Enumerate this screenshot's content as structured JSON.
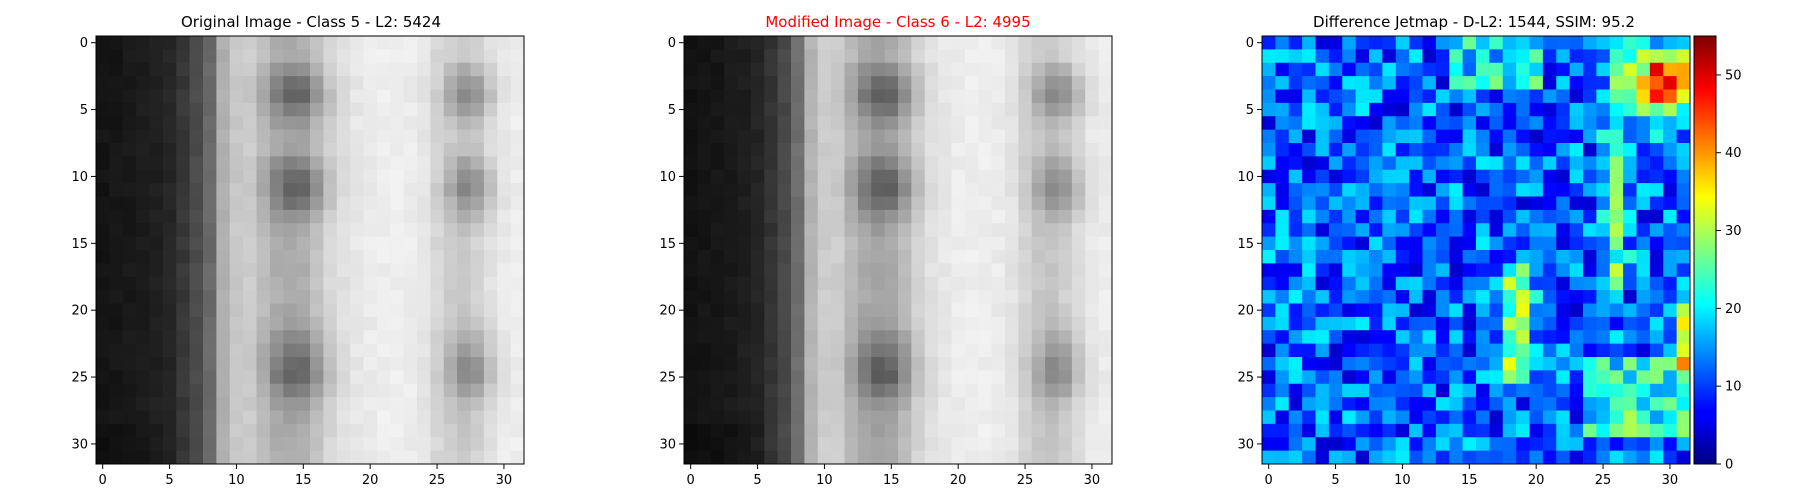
{
  "chart_data": [
    {
      "type": "heatmap",
      "title": "Original Image - Class 5 - L2: 5424",
      "title_color": "#000000",
      "colormap": "gray",
      "xlim": [
        -0.5,
        31.5
      ],
      "ylim": [
        31.5,
        -0.5
      ],
      "xticks": [
        0,
        5,
        10,
        15,
        20,
        25,
        30
      ],
      "yticks": [
        0,
        5,
        10,
        15,
        20,
        25,
        30
      ],
      "column_profile": [
        20,
        22,
        25,
        28,
        32,
        38,
        55,
        75,
        105,
        175,
        200,
        205,
        190,
        175,
        170,
        175,
        195,
        215,
        225,
        232,
        235,
        238,
        238,
        236,
        230,
        215,
        205,
        200,
        210,
        225,
        235,
        238
      ],
      "row_profile": [
        0,
        0,
        0.35,
        0.65,
        0.8,
        0.55,
        0.25,
        0.1,
        0.15,
        0.45,
        0.7,
        0.8,
        0.6,
        0.3,
        0.1,
        0.0,
        0.0,
        0.0,
        0.0,
        0.0,
        0.05,
        0.15,
        0.35,
        0.55,
        0.75,
        0.8,
        0.55,
        0.25,
        0.1,
        0.05,
        0,
        0
      ]
    },
    {
      "type": "heatmap",
      "title": "Modified Image - Class 6 - L2: 4995",
      "title_color": "#ff0000",
      "colormap": "gray",
      "xlim": [
        -0.5,
        31.5
      ],
      "ylim": [
        31.5,
        -0.5
      ],
      "xticks": [
        0,
        5,
        10,
        15,
        20,
        25,
        30
      ],
      "yticks": [
        0,
        5,
        10,
        15,
        20,
        25,
        30
      ],
      "column_profile": [
        18,
        20,
        22,
        25,
        30,
        36,
        52,
        72,
        110,
        180,
        205,
        205,
        185,
        170,
        165,
        170,
        190,
        212,
        225,
        232,
        236,
        238,
        238,
        235,
        228,
        212,
        200,
        198,
        208,
        222,
        232,
        236
      ],
      "row_profile": [
        0,
        0,
        0.35,
        0.65,
        0.8,
        0.55,
        0.25,
        0.1,
        0.15,
        0.45,
        0.7,
        0.8,
        0.6,
        0.3,
        0.1,
        0.0,
        0.0,
        0.0,
        0.0,
        0.0,
        0.05,
        0.15,
        0.35,
        0.55,
        0.75,
        0.8,
        0.55,
        0.25,
        0.1,
        0.05,
        0,
        0
      ]
    },
    {
      "type": "heatmap",
      "title": "Difference Jetmap - D-L2: 1544, SSIM: 95.2",
      "title_color": "#000000",
      "colormap": "jet",
      "vmin": 0,
      "vmax": 55,
      "xlim": [
        -0.5,
        31.5
      ],
      "ylim": [
        31.5,
        -0.5
      ],
      "xticks": [
        0,
        5,
        10,
        15,
        20,
        25,
        30
      ],
      "yticks": [
        0,
        5,
        10,
        15,
        20,
        25,
        30
      ],
      "colorbar": {
        "ticks": [
          0,
          10,
          20,
          30,
          40,
          50
        ]
      }
    }
  ]
}
